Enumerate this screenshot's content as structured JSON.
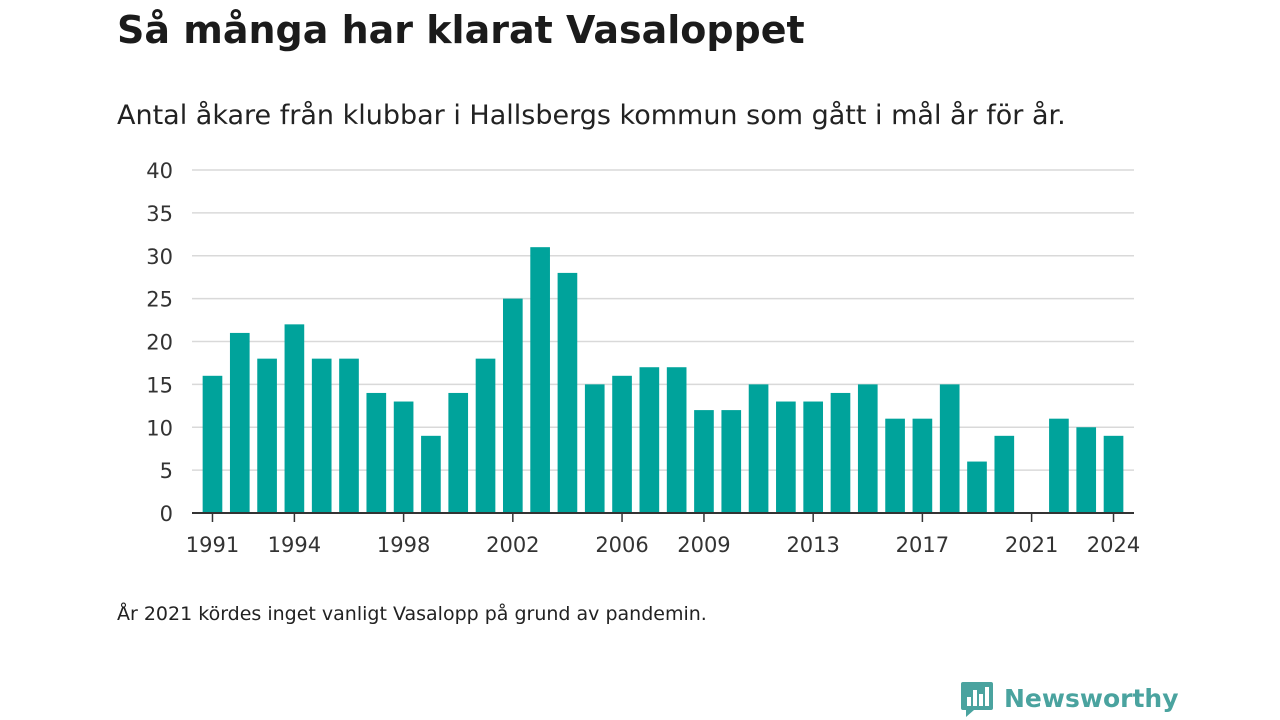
{
  "header": {
    "title": "Så många har klarat Vasaloppet",
    "subtitle": "Antal åkare från klubbar i Hallsbergs kommun som gått i mål år för år."
  },
  "footnote": "År 2021 kördes inget vanligt Vasalopp på grund av pandemin.",
  "brand": {
    "name": "Newsworthy",
    "icon": "newsworthy-logo-icon",
    "color": "#4aa39f"
  },
  "colors": {
    "bar": "#00a39b",
    "grid": "#d9d9d9",
    "axis": "#333333"
  },
  "chart_data": {
    "type": "bar",
    "x": [
      1991,
      1992,
      1993,
      1994,
      1995,
      1996,
      1997,
      1998,
      1999,
      2000,
      2001,
      2002,
      2003,
      2004,
      2005,
      2006,
      2007,
      2008,
      2009,
      2010,
      2011,
      2012,
      2013,
      2014,
      2015,
      2016,
      2017,
      2018,
      2019,
      2020,
      2021,
      2022,
      2023,
      2024
    ],
    "values": [
      16,
      21,
      18,
      22,
      18,
      18,
      14,
      13,
      9,
      14,
      18,
      25,
      31,
      28,
      15,
      16,
      17,
      17,
      12,
      12,
      15,
      13,
      13,
      14,
      15,
      11,
      11,
      15,
      6,
      9,
      0,
      11,
      10,
      9
    ],
    "x_tick_labels": [
      "1991",
      "1994",
      "1998",
      "2002",
      "2006",
      "2009",
      "2013",
      "2017",
      "2021",
      "2024"
    ],
    "y_ticks": [
      0,
      5,
      10,
      15,
      20,
      25,
      30,
      35,
      40
    ],
    "ylim": [
      0,
      40
    ],
    "grid": "horizontal",
    "legend": "none"
  }
}
